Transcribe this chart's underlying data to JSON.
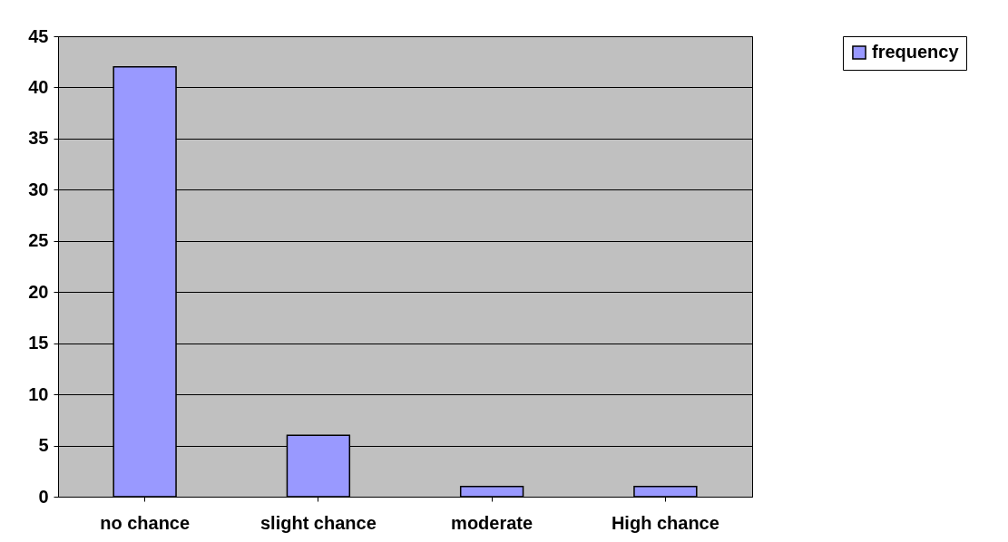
{
  "chart_data": {
    "type": "bar",
    "categories": [
      "no chance",
      "slight chance",
      "moderate",
      "High chance"
    ],
    "series": [
      {
        "name": "frequency",
        "color": "#9999ff",
        "values": [
          42,
          6,
          1,
          1
        ]
      }
    ],
    "ylim": [
      0,
      45
    ],
    "yticks": [
      0,
      5,
      10,
      15,
      20,
      25,
      30,
      35,
      40,
      45
    ],
    "grid": "y",
    "legend": "right"
  }
}
